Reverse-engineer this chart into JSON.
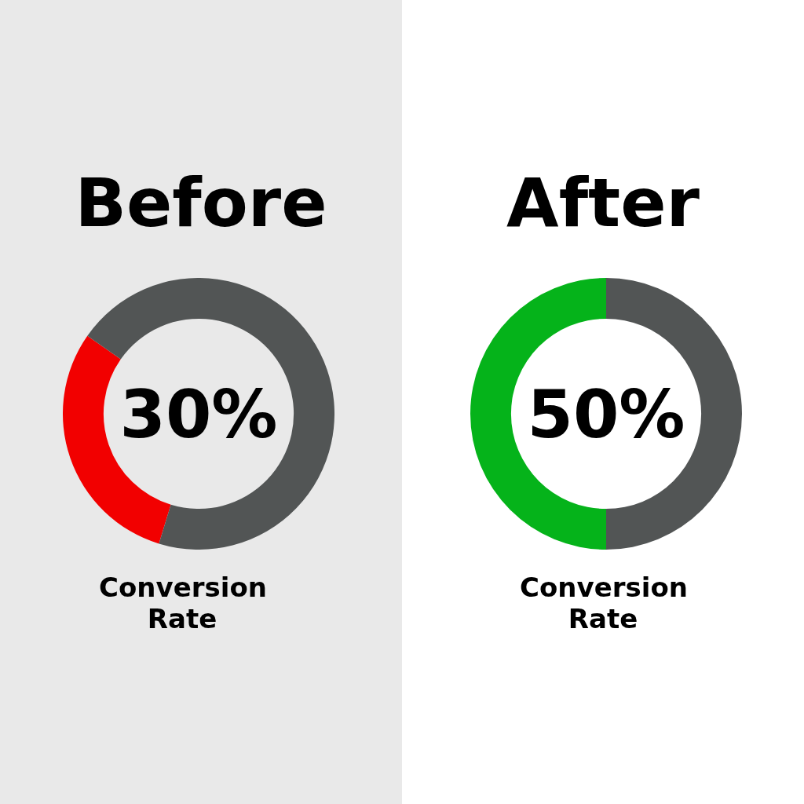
{
  "chart_data": [
    {
      "type": "donut",
      "title": "Before",
      "xlabel": "Conversion Rate",
      "categories": [
        null,
        null
      ],
      "values": [
        30,
        70
      ],
      "colors": [
        "#f20000",
        "#525555"
      ],
      "value_labels": [
        "30%",
        null
      ],
      "legend": false
    },
    {
      "type": "donut",
      "title": "After",
      "xlabel": "Conversion Rate",
      "categories": [
        null,
        null
      ],
      "values": [
        50,
        50
      ],
      "colors": [
        "#05b31a",
        "#525555"
      ],
      "value_labels": [
        "50%",
        null
      ],
      "legend": false
    }
  ]
}
